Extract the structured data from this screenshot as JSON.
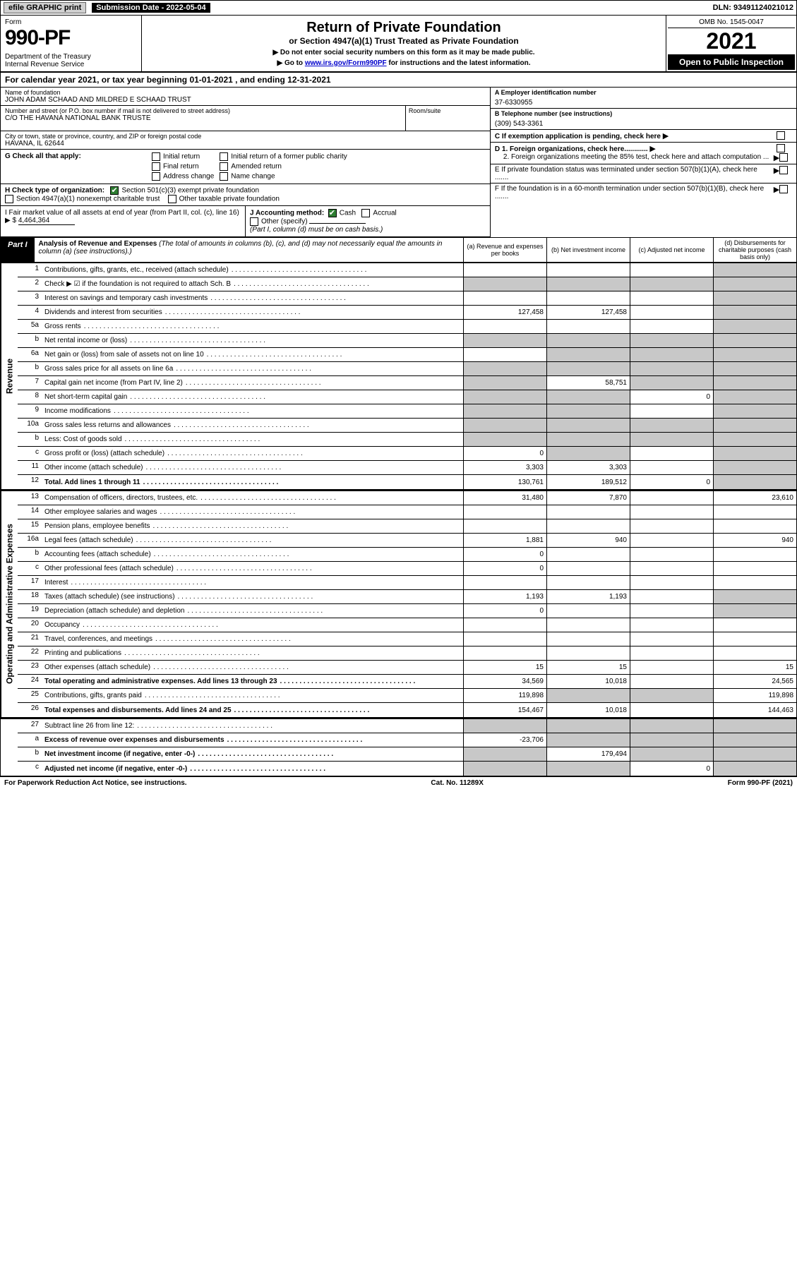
{
  "top_bar": {
    "print_btn": "efile GRAPHIC print",
    "submission_label": "Submission Date - 2022-05-04",
    "dln": "DLN: 93491124021012"
  },
  "header": {
    "form_word": "Form",
    "form_num": "990-PF",
    "dept": "Department of the Treasury\nInternal Revenue Service",
    "title": "Return of Private Foundation",
    "subtitle": "or Section 4947(a)(1) Trust Treated as Private Foundation",
    "note1": "▶ Do not enter social security numbers on this form as it may be made public.",
    "note2_pre": "▶ Go to ",
    "note2_link": "www.irs.gov/Form990PF",
    "note2_post": " for instructions and the latest information.",
    "omb": "OMB No. 1545-0047",
    "year": "2021",
    "open_pub": "Open to Public Inspection"
  },
  "cal_year": "For calendar year 2021, or tax year beginning 01-01-2021            , and ending 12-31-2021",
  "left": {
    "name_label": "Name of foundation",
    "name": "JOHN ADAM SCHAAD AND MILDRED E SCHAAD TRUST",
    "addr_label": "Number and street (or P.O. box number if mail is not delivered to street address)",
    "addr": "C/O THE HAVANA NATIONAL BANK TRUSTE",
    "room_label": "Room/suite",
    "city_label": "City or town, state or province, country, and ZIP or foreign postal code",
    "city": "HAVANA, IL  62644"
  },
  "right": {
    "a_label": "A Employer identification number",
    "a_val": "37-6330955",
    "b_label": "B Telephone number (see instructions)",
    "b_val": "(309) 543-3361",
    "c_label": "C If exemption application is pending, check here",
    "d1": "D 1. Foreign organizations, check here............",
    "d2": "2. Foreign organizations meeting the 85% test, check here and attach computation ...",
    "e": "E  If private foundation status was terminated under section 507(b)(1)(A), check here .......",
    "f": "F  If the foundation is in a 60-month termination under section 507(b)(1)(B), check here ......."
  },
  "g": {
    "label": "G Check all that apply:",
    "opts": [
      "Initial return",
      "Final return",
      "Address change",
      "Initial return of a former public charity",
      "Amended return",
      "Name change"
    ]
  },
  "h": {
    "label": "H Check type of organization:",
    "o1": "Section 501(c)(3) exempt private foundation",
    "o2": "Section 4947(a)(1) nonexempt charitable trust",
    "o3": "Other taxable private foundation"
  },
  "i": {
    "label": "I Fair market value of all assets at end of year (from Part II, col. (c), line 16) ▶ $",
    "val": "4,464,364"
  },
  "j": {
    "label": "J Accounting method:",
    "cash": "Cash",
    "accrual": "Accrual",
    "other": "Other (specify)",
    "note": "(Part I, column (d) must be on cash basis.)"
  },
  "part1": {
    "label": "Part I",
    "title": "Analysis of Revenue and Expenses",
    "title_note": " (The total of amounts in columns (b), (c), and (d) may not necessarily equal the amounts in column (a) (see instructions).)",
    "col_a": "(a)  Revenue and expenses per books",
    "col_b": "(b)  Net investment income",
    "col_c": "(c)  Adjusted net income",
    "col_d": "(d)  Disbursements for charitable purposes (cash basis only)"
  },
  "side_rev": "Revenue",
  "side_exp": "Operating and Administrative Expenses",
  "rows": {
    "r1": {
      "ln": "1",
      "desc": "Contributions, gifts, grants, etc., received (attach schedule)"
    },
    "r2": {
      "ln": "2",
      "desc": "Check ▶ ☑ if the foundation is not required to attach Sch. B"
    },
    "r3": {
      "ln": "3",
      "desc": "Interest on savings and temporary cash investments"
    },
    "r4": {
      "ln": "4",
      "desc": "Dividends and interest from securities",
      "a": "127,458",
      "b": "127,458"
    },
    "r5a": {
      "ln": "5a",
      "desc": "Gross rents"
    },
    "r5b": {
      "ln": "b",
      "desc": "Net rental income or (loss)"
    },
    "r6a": {
      "ln": "6a",
      "desc": "Net gain or (loss) from sale of assets not on line 10"
    },
    "r6b": {
      "ln": "b",
      "desc": "Gross sales price for all assets on line 6a"
    },
    "r7": {
      "ln": "7",
      "desc": "Capital gain net income (from Part IV, line 2)",
      "b": "58,751"
    },
    "r8": {
      "ln": "8",
      "desc": "Net short-term capital gain",
      "c": "0"
    },
    "r9": {
      "ln": "9",
      "desc": "Income modifications"
    },
    "r10a": {
      "ln": "10a",
      "desc": "Gross sales less returns and allowances"
    },
    "r10b": {
      "ln": "b",
      "desc": "Less: Cost of goods sold"
    },
    "r10c": {
      "ln": "c",
      "desc": "Gross profit or (loss) (attach schedule)",
      "a": "0"
    },
    "r11": {
      "ln": "11",
      "desc": "Other income (attach schedule)",
      "a": "3,303",
      "b": "3,303"
    },
    "r12": {
      "ln": "12",
      "desc": "Total. Add lines 1 through 11",
      "a": "130,761",
      "b": "189,512",
      "c": "0",
      "bold": true
    },
    "r13": {
      "ln": "13",
      "desc": "Compensation of officers, directors, trustees, etc.",
      "a": "31,480",
      "b": "7,870",
      "d": "23,610"
    },
    "r14": {
      "ln": "14",
      "desc": "Other employee salaries and wages"
    },
    "r15": {
      "ln": "15",
      "desc": "Pension plans, employee benefits"
    },
    "r16a": {
      "ln": "16a",
      "desc": "Legal fees (attach schedule)",
      "a": "1,881",
      "b": "940",
      "d": "940"
    },
    "r16b": {
      "ln": "b",
      "desc": "Accounting fees (attach schedule)",
      "a": "0"
    },
    "r16c": {
      "ln": "c",
      "desc": "Other professional fees (attach schedule)",
      "a": "0"
    },
    "r17": {
      "ln": "17",
      "desc": "Interest"
    },
    "r18": {
      "ln": "18",
      "desc": "Taxes (attach schedule) (see instructions)",
      "a": "1,193",
      "b": "1,193"
    },
    "r19": {
      "ln": "19",
      "desc": "Depreciation (attach schedule) and depletion",
      "a": "0"
    },
    "r20": {
      "ln": "20",
      "desc": "Occupancy"
    },
    "r21": {
      "ln": "21",
      "desc": "Travel, conferences, and meetings"
    },
    "r22": {
      "ln": "22",
      "desc": "Printing and publications"
    },
    "r23": {
      "ln": "23",
      "desc": "Other expenses (attach schedule)",
      "a": "15",
      "b": "15",
      "d": "15"
    },
    "r24": {
      "ln": "24",
      "desc": "Total operating and administrative expenses. Add lines 13 through 23",
      "a": "34,569",
      "b": "10,018",
      "d": "24,565",
      "bold": true
    },
    "r25": {
      "ln": "25",
      "desc": "Contributions, gifts, grants paid",
      "a": "119,898",
      "d": "119,898"
    },
    "r26": {
      "ln": "26",
      "desc": "Total expenses and disbursements. Add lines 24 and 25",
      "a": "154,467",
      "b": "10,018",
      "d": "144,463",
      "bold": true
    },
    "r27": {
      "ln": "27",
      "desc": "Subtract line 26 from line 12:"
    },
    "r27a": {
      "ln": "a",
      "desc": "Excess of revenue over expenses and disbursements",
      "a": "-23,706",
      "bold": true
    },
    "r27b": {
      "ln": "b",
      "desc": "Net investment income (if negative, enter -0-)",
      "b": "179,494",
      "bold": true
    },
    "r27c": {
      "ln": "c",
      "desc": "Adjusted net income (if negative, enter -0-)",
      "c": "0",
      "bold": true
    }
  },
  "footer": {
    "left": "For Paperwork Reduction Act Notice, see instructions.",
    "mid": "Cat. No. 11289X",
    "right": "Form 990-PF (2021)"
  },
  "colors": {
    "shade": "#c8c8c8",
    "black": "#000000",
    "link": "#0000cc",
    "checkgreen": "#2e7d32",
    "btn_bg": "#d0d0d0"
  }
}
